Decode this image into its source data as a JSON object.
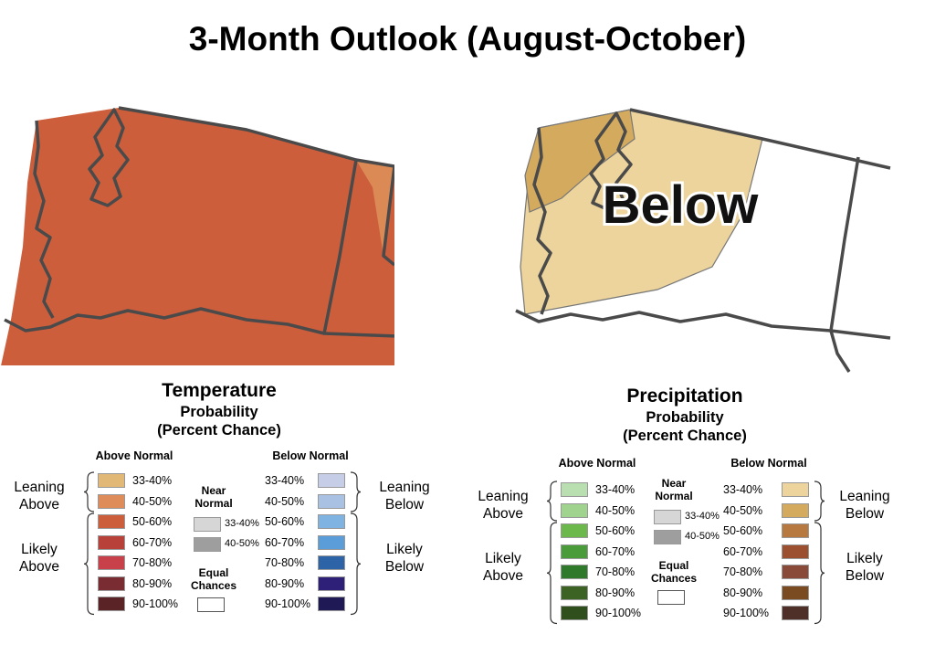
{
  "title": "3-Month Outlook (August-October)",
  "maps": {
    "temperature": {
      "fill": "#cd5e3c",
      "edge_fill": "#dc8a55"
    },
    "precipitation": {
      "label": "Below",
      "leaning_fill": "#ecd49c",
      "below_fill": "#d4aa5e"
    }
  },
  "legends": {
    "temperature": {
      "title": "Temperature",
      "subtitle1": "Probability",
      "subtitle2": "(Percent Chance)",
      "above_header": "Above Normal",
      "below_header": "Below Normal",
      "leaning_above": [
        "Leaning",
        "Above"
      ],
      "likely_above": [
        "Likely",
        "Above"
      ],
      "leaning_below": [
        "Leaning",
        "Below"
      ],
      "likely_below": [
        "Likely",
        "Below"
      ],
      "near_normal": [
        "Near",
        "Normal"
      ],
      "equal_chances": [
        "Equal",
        "Chances"
      ],
      "above": [
        {
          "label": "33-40%",
          "color": "#e2b877"
        },
        {
          "label": "40-50%",
          "color": "#de8c5a"
        },
        {
          "label": "50-60%",
          "color": "#cd5e3c"
        },
        {
          "label": "60-70%",
          "color": "#b8413a"
        },
        {
          "label": "70-80%",
          "color": "#c8414a"
        },
        {
          "label": "80-90%",
          "color": "#7a2c33"
        },
        {
          "label": "90-100%",
          "color": "#5a2427"
        }
      ],
      "below": [
        {
          "label": "33-40%",
          "color": "#c6cde6"
        },
        {
          "label": "40-50%",
          "color": "#a9c2e4"
        },
        {
          "label": "50-60%",
          "color": "#7fb3e1"
        },
        {
          "label": "60-70%",
          "color": "#5a9dd8"
        },
        {
          "label": "70-80%",
          "color": "#2d63a7"
        },
        {
          "label": "80-90%",
          "color": "#2e1f78"
        },
        {
          "label": "90-100%",
          "color": "#1f1a55"
        }
      ],
      "near": [
        {
          "label": "33-40%",
          "color": "#d6d6d6"
        },
        {
          "label": "40-50%",
          "color": "#9e9e9e"
        }
      ]
    },
    "precipitation": {
      "title": "Precipitation",
      "subtitle1": "Probability",
      "subtitle2": "(Percent Chance)",
      "above_header": "Above Normal",
      "below_header": "Below Normal",
      "leaning_above": [
        "Leaning",
        "Above"
      ],
      "likely_above": [
        "Likely",
        "Above"
      ],
      "leaning_below": [
        "Leaning",
        "Below"
      ],
      "likely_below": [
        "Likely",
        "Below"
      ],
      "near_normal": [
        "Near",
        "Normal"
      ],
      "equal_chances": [
        "Equal",
        "Chances"
      ],
      "above": [
        {
          "label": "33-40%",
          "color": "#b9dfb0"
        },
        {
          "label": "40-50%",
          "color": "#a0d38e"
        },
        {
          "label": "50-60%",
          "color": "#6db84b"
        },
        {
          "label": "60-70%",
          "color": "#4a9c3a"
        },
        {
          "label": "70-80%",
          "color": "#2f7a2a"
        },
        {
          "label": "80-90%",
          "color": "#3d6324"
        },
        {
          "label": "90-100%",
          "color": "#2f4f1c"
        }
      ],
      "below": [
        {
          "label": "33-40%",
          "color": "#ecd49c"
        },
        {
          "label": "40-50%",
          "color": "#d4aa5e"
        },
        {
          "label": "50-60%",
          "color": "#b87940"
        },
        {
          "label": "60-70%",
          "color": "#9c5030"
        },
        {
          "label": "70-80%",
          "color": "#8a4a3a"
        },
        {
          "label": "80-90%",
          "color": "#7a4a20"
        },
        {
          "label": "90-100%",
          "color": "#4e3028"
        }
      ],
      "near": [
        {
          "label": "33-40%",
          "color": "#d6d6d6"
        },
        {
          "label": "40-50%",
          "color": "#9e9e9e"
        }
      ]
    }
  }
}
